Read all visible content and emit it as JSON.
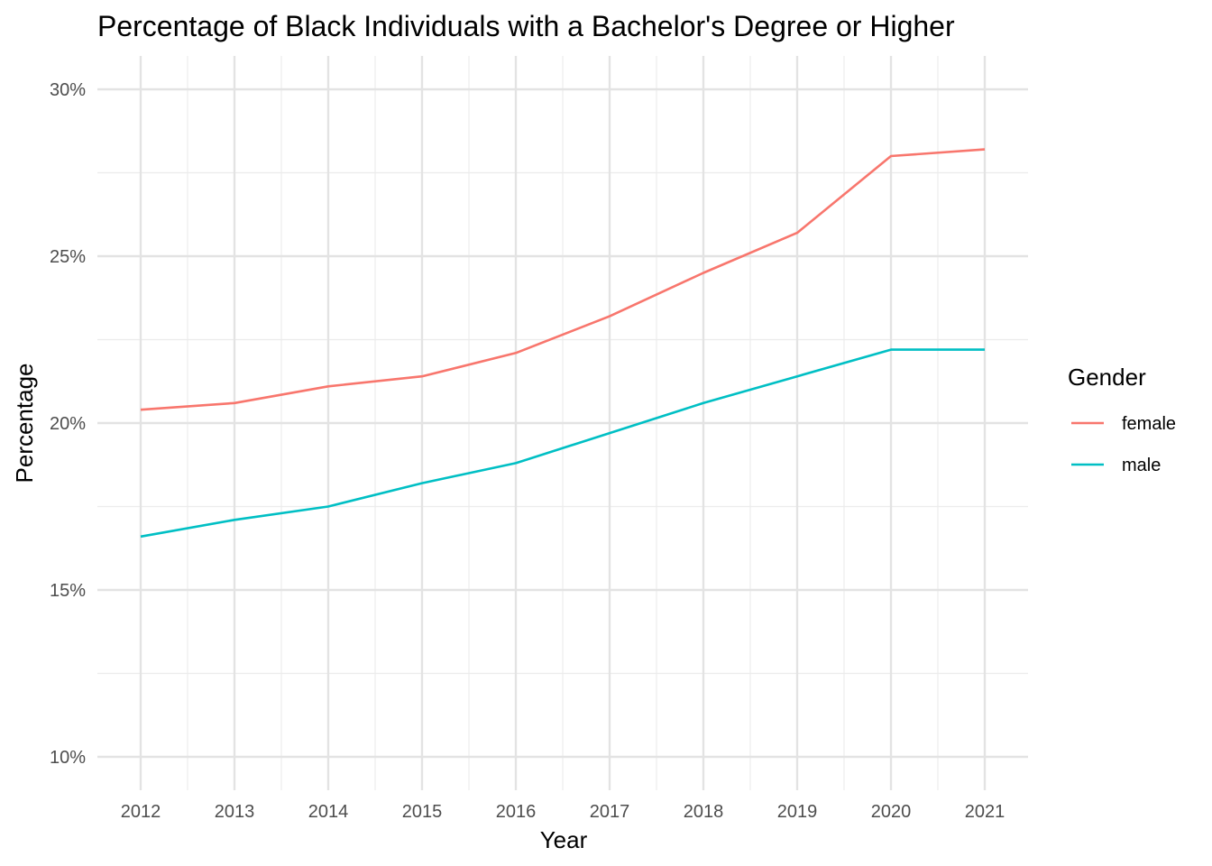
{
  "chart_data": {
    "type": "line",
    "title": "Percentage of Black Individuals with a Bachelor's Degree or Higher",
    "xlabel": "Year",
    "ylabel": "Percentage",
    "x": [
      2012,
      2013,
      2014,
      2015,
      2016,
      2017,
      2018,
      2019,
      2020,
      2021
    ],
    "x_tick_labels": [
      "2012",
      "2013",
      "2014",
      "2015",
      "2016",
      "2017",
      "2018",
      "2019",
      "2020",
      "2021"
    ],
    "ylim": [
      9,
      31
    ],
    "y_ticks": [
      10,
      15,
      20,
      25,
      30
    ],
    "y_tick_labels": [
      "10%",
      "15%",
      "20%",
      "25%",
      "30%"
    ],
    "grid": true,
    "legend": {
      "title": "Gender",
      "position": "right"
    },
    "series": [
      {
        "name": "female",
        "color": "#F8766D",
        "values": [
          20.4,
          20.6,
          21.1,
          21.4,
          22.1,
          23.2,
          24.5,
          25.7,
          28.0,
          28.2
        ]
      },
      {
        "name": "male",
        "color": "#00BFC4",
        "values": [
          16.6,
          17.1,
          17.5,
          18.2,
          18.8,
          19.7,
          20.6,
          21.4,
          22.2,
          22.2
        ]
      }
    ]
  }
}
